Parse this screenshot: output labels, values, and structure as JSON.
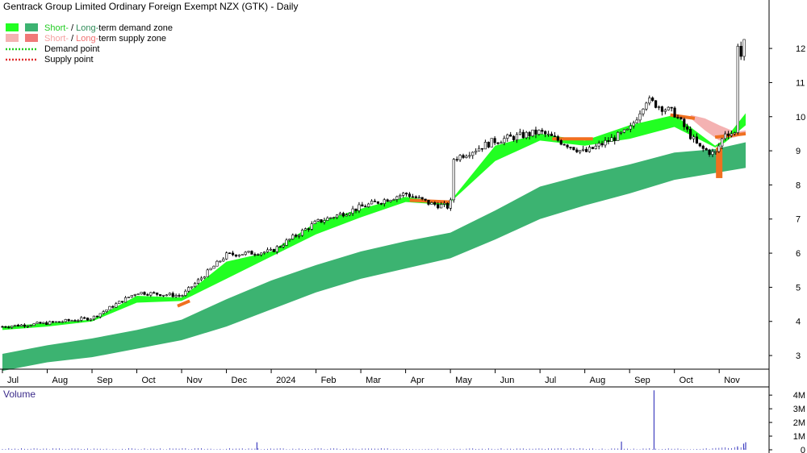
{
  "chart_data": {
    "type": "candlestick",
    "title": "Gentrack Group Limited Ordinary Foreign Exempt NZX (GTK) - Daily",
    "legend": {
      "placement": "top-left",
      "items": [
        {
          "swatch_colors": [
            "#22ff22",
            "#3cb371"
          ],
          "parts": [
            "Short-",
            " / ",
            "Long-",
            "term demand zone"
          ],
          "part_colors": [
            "#22cc22",
            "#000000",
            "#2e8b57",
            "#000000"
          ]
        },
        {
          "swatch_colors": [
            "#f4b2b2",
            "#f07878"
          ],
          "parts": [
            "Short-",
            " / ",
            "Long-",
            "term supply zone"
          ],
          "part_colors": [
            "#f4a0a0",
            "#000000",
            "#f07070",
            "#000000"
          ]
        },
        {
          "line_color": "#22cc22",
          "label": "Demand point"
        },
        {
          "line_color": "#e03030",
          "label": "Supply point"
        }
      ]
    },
    "x_labels": [
      "Jul",
      "Aug",
      "Sep",
      "Oct",
      "Nov",
      "Dec",
      "2024",
      "Feb",
      "Mar",
      "Apr",
      "May",
      "Jun",
      "Jul",
      "Aug",
      "Sep",
      "Oct",
      "Nov"
    ],
    "x_label_day_index": [
      0,
      22,
      44,
      66,
      88,
      110,
      132,
      154,
      176,
      198,
      220,
      242,
      264,
      286,
      308,
      330,
      352
    ],
    "y_ticks": [
      3,
      4,
      5,
      6,
      7,
      8,
      9,
      10,
      11,
      12
    ],
    "ylim": [
      2.6,
      12.9
    ],
    "price_series": {
      "day_index": [
        0,
        22,
        44,
        66,
        88,
        110,
        132,
        154,
        176,
        198,
        210,
        220,
        221,
        242,
        264,
        286,
        308,
        316,
        330,
        342,
        350,
        355,
        360,
        361,
        363,
        365
      ],
      "close": [
        3.85,
        3.95,
        4.1,
        4.85,
        4.75,
        5.95,
        6.05,
        6.9,
        7.35,
        7.75,
        7.45,
        7.35,
        8.75,
        9.3,
        9.55,
        8.95,
        9.6,
        10.5,
        10.1,
        9.1,
        8.9,
        9.55,
        9.5,
        12.2,
        11.7,
        12.4
      ]
    },
    "short_term_demand_zone": {
      "day_index": [
        0,
        22,
        44,
        66,
        88,
        110,
        132,
        154,
        176,
        198,
        210,
        220,
        221,
        242,
        264,
        286,
        308,
        330,
        350,
        355,
        365
      ],
      "lower": [
        3.75,
        3.85,
        4.0,
        4.55,
        4.6,
        5.25,
        5.9,
        6.55,
        7.05,
        7.5,
        7.45,
        7.4,
        7.55,
        8.7,
        9.3,
        9.15,
        9.35,
        9.7,
        9.1,
        9.25,
        9.75
      ],
      "upper": [
        3.85,
        3.95,
        4.05,
        4.75,
        4.7,
        5.75,
        6.05,
        6.9,
        7.3,
        7.65,
        7.55,
        7.5,
        7.6,
        9.15,
        9.5,
        9.3,
        9.75,
        10.05,
        9.15,
        9.35,
        10.1
      ]
    },
    "long_term_demand_zone": {
      "day_index": [
        0,
        22,
        44,
        66,
        88,
        110,
        132,
        154,
        176,
        198,
        220,
        242,
        264,
        286,
        308,
        330,
        350,
        365
      ],
      "lower": [
        2.55,
        2.8,
        2.95,
        3.2,
        3.45,
        3.85,
        4.35,
        4.85,
        5.25,
        5.55,
        5.85,
        6.4,
        7.0,
        7.4,
        7.75,
        8.15,
        8.35,
        8.5
      ],
      "upper": [
        3.05,
        3.3,
        3.5,
        3.75,
        4.05,
        4.65,
        5.2,
        5.65,
        6.05,
        6.35,
        6.6,
        7.25,
        7.95,
        8.3,
        8.6,
        8.95,
        9.05,
        9.25
      ]
    },
    "supply_segments": [
      {
        "day_index": [
          86,
          92
        ],
        "y": [
          4.45,
          4.6
        ]
      },
      {
        "day_index": [
          200,
          220
        ],
        "y": [
          7.55,
          7.5
        ]
      },
      {
        "day_index": [
          270,
          290
        ],
        "y": [
          9.35,
          9.35
        ]
      },
      {
        "day_index": [
          328,
          340
        ],
        "y": [
          10.05,
          9.95
        ]
      },
      {
        "day_index": [
          350,
          365
        ],
        "y": [
          9.4,
          9.5
        ]
      }
    ],
    "short_term_supply_zone": {
      "day_index": [
        338,
        345,
        352,
        360,
        365
      ],
      "lower": [
        9.95,
        9.6,
        9.3,
        9.4,
        9.5
      ],
      "upper": [
        10.05,
        9.95,
        9.75,
        9.55,
        9.6
      ]
    },
    "supply_bar": {
      "day_index": 352,
      "low": 8.2,
      "high": 9.1
    },
    "volume": {
      "title": "Volume",
      "y_ticks": [
        "0",
        "1M",
        "2M",
        "3M",
        "4M"
      ],
      "ylim_millions": [
        0,
        4.6
      ],
      "spikes": [
        {
          "day_index": 125,
          "millions": 0.55
        },
        {
          "day_index": 304,
          "millions": 0.6
        },
        {
          "day_index": 320,
          "millions": 4.35
        },
        {
          "day_index": 361,
          "millions": 0.25
        },
        {
          "day_index": 364,
          "millions": 0.45
        },
        {
          "day_index": 365,
          "millions": 0.55
        }
      ]
    }
  }
}
